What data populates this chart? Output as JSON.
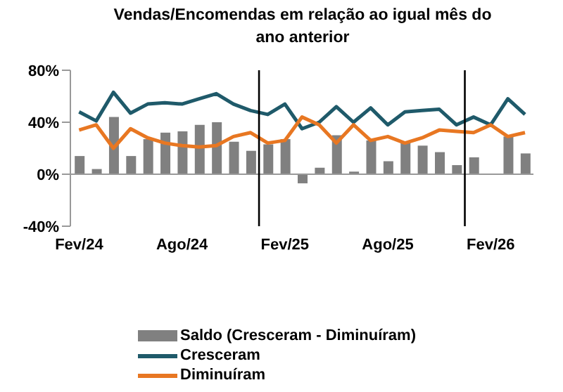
{
  "chart_data": {
    "type": "bar",
    "title": "Vendas/Encomendas em relação ao igual mês do ano anterior",
    "x": [
      "2024-02",
      "2024-03",
      "2024-04",
      "2024-05",
      "2024-06",
      "2024-07",
      "2024-08",
      "2024-09",
      "2024-10",
      "2024-11",
      "2024-12",
      "2025-01",
      "2025-02",
      "2025-03",
      "2025-04",
      "2025-05",
      "2025-06",
      "2025-07",
      "2025-08",
      "2025-09",
      "2025-10",
      "2025-11",
      "2025-12",
      "2026-01",
      "2026-02",
      "2026-03",
      "2026-04"
    ],
    "series": [
      {
        "name": "Saldo (Cresceram - Diminuíram)",
        "color": "#808080",
        "values": [
          14,
          4,
          44,
          14,
          27,
          32,
          33,
          38,
          40,
          25,
          18,
          23,
          27,
          -7,
          5,
          30,
          2,
          26,
          10,
          25,
          22,
          17,
          7,
          13,
          0,
          29,
          16
        ]
      },
      {
        "name": "Cresceram",
        "type": "line",
        "color": "#1f5a6a",
        "values": [
          48,
          41,
          63,
          47,
          54,
          55,
          54,
          58,
          62,
          54,
          49,
          46,
          54,
          35,
          40,
          52,
          40,
          51,
          38,
          48,
          49,
          50,
          38,
          44,
          38,
          58,
          46
        ]
      },
      {
        "name": "Diminuíram",
        "type": "line",
        "color": "#e87722",
        "values": [
          34,
          38,
          20,
          35,
          28,
          24,
          22,
          21,
          22,
          29,
          32,
          24,
          26,
          44,
          38,
          24,
          38,
          26,
          29,
          24,
          28,
          34,
          33,
          32,
          38,
          29,
          32
        ]
      }
    ],
    "xlim": [
      "2024-01-16",
      "2026-04-16"
    ],
    "xticks": [
      {
        "value": "2024-02",
        "label": "Fev/24"
      },
      {
        "value": "2024-08",
        "label": "Ago/24"
      },
      {
        "value": "2025-02",
        "label": "Fev/25"
      },
      {
        "value": "2025-08",
        "label": "Ago/25"
      },
      {
        "value": "2026-02",
        "label": "Fev/26"
      }
    ],
    "ylim": [
      -40,
      80
    ],
    "yticks": [
      {
        "value": -40,
        "label": "-40%"
      },
      {
        "value": 0,
        "label": "0%"
      },
      {
        "value": 40,
        "label": "40%"
      },
      {
        "value": 80,
        "label": "80%"
      }
    ],
    "ref_lines": [
      {
        "axis": "x",
        "value": "2024-12-16",
        "color": "#000000"
      },
      {
        "axis": "x",
        "value": "2025-12-16",
        "color": "#000000"
      }
    ],
    "legend": "bottom"
  }
}
